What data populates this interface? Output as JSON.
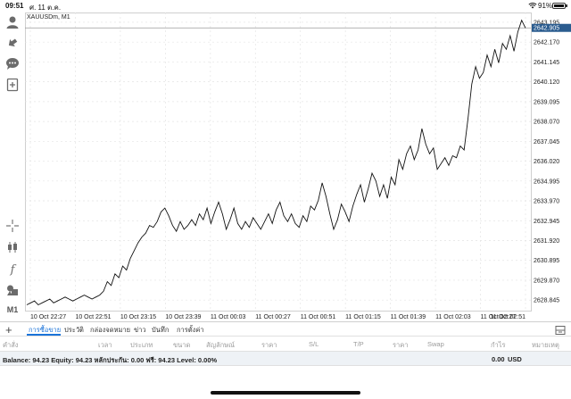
{
  "status_bar": {
    "time": "09:51",
    "date": "ศ. 11 ต.ค.",
    "battery": "91%"
  },
  "chart": {
    "symbol_label": "XAUUSDm, M1",
    "current_price": "2642.905",
    "price_axis_labels": [
      "2643.195",
      "2642.170",
      "2641.145",
      "2640.120",
      "2639.095",
      "2638.070",
      "2637.045",
      "2636.020",
      "2634.995",
      "2633.970",
      "2632.945",
      "2631.920",
      "2630.895",
      "2629.870",
      "2628.845"
    ],
    "time_axis_labels": [
      "10 Oct 22:27",
      "10 Oct 22:51",
      "10 Oct 23:15",
      "10 Oct 23:39",
      "11 Oct 00:03",
      "11 Oct 00:27",
      "11 Oct 00:51",
      "11 Oct 01:15",
      "11 Oct 01:39",
      "11 Oct 02:03",
      "11 Oct 02:27",
      "11 Oct 02:51"
    ]
  },
  "chart_data": {
    "type": "line",
    "series": [
      {
        "values": [
          2628.6,
          2628.7,
          2628.8,
          2628.6,
          2628.7,
          2628.8,
          2628.9,
          2628.7,
          2628.8,
          2628.9,
          2629.0,
          2628.9,
          2628.8,
          2628.9,
          2629.0,
          2629.1,
          2629.0,
          2628.9,
          2629.0,
          2629.1,
          2629.3,
          2629.8,
          2629.6,
          2630.2,
          2630.0,
          2630.6,
          2630.4,
          2631.0,
          2631.4,
          2631.8,
          2632.1,
          2632.3,
          2632.7,
          2632.6,
          2632.9,
          2633.4,
          2633.6,
          2633.2,
          2632.7,
          2632.4,
          2632.9,
          2632.5,
          2632.7,
          2633.0,
          2632.7,
          2633.3,
          2633.0,
          2633.6,
          2632.8,
          2633.4,
          2633.9,
          2633.3,
          2632.5,
          2633.0,
          2633.6,
          2632.8,
          2632.5,
          2632.9,
          2632.6,
          2633.1,
          2632.8,
          2632.5,
          2632.9,
          2633.3,
          2632.8,
          2633.5,
          2633.9,
          2633.2,
          2632.9,
          2633.3,
          2632.8,
          2632.6,
          2633.2,
          2632.9,
          2633.7,
          2633.5,
          2634.0,
          2634.9,
          2634.2,
          2633.3,
          2632.5,
          2633.0,
          2633.8,
          2633.4,
          2632.9,
          2633.7,
          2634.3,
          2634.8,
          2633.9,
          2634.6,
          2635.4,
          2635.0,
          2634.2,
          2634.8,
          2634.1,
          2635.2,
          2634.8,
          2636.1,
          2635.6,
          2636.4,
          2636.8,
          2636.1,
          2636.6,
          2637.7,
          2636.9,
          2636.4,
          2636.7,
          2635.6,
          2635.9,
          2636.2,
          2635.8,
          2636.3,
          2636.2,
          2636.8,
          2636.6,
          2638.2,
          2640.0,
          2640.9,
          2640.3,
          2640.6,
          2641.5,
          2640.9,
          2641.8,
          2641.1,
          2642.1,
          2641.8,
          2642.5,
          2641.7,
          2642.7,
          2643.3,
          2642.9
        ],
        "color": "#111111"
      }
    ],
    "xlabel": "",
    "ylabel": "",
    "ylim": [
      2628.3,
      2643.7
    ],
    "grid": true,
    "current_price_line": 2642.905
  },
  "tabs": [
    "การซื้อขาย",
    "ประวัติ",
    "กล่องจดหมาย",
    "ข่าว",
    "บันทึก",
    "การตั้งค่า"
  ],
  "table_headers": [
    "คำสั่ง",
    "เวลา",
    "ประเภท",
    "ขนาด",
    "สัญลักษณ์",
    "ราคา",
    "S/L",
    "T/P",
    "ราคา",
    "Swap",
    "กำไร",
    "หมายเหตุ"
  ],
  "balance": {
    "text": "Balance: 94.23 Equity: 94.23 หลักประกัน: 0.00 ฟรี: 94.23 Level: 0.00%",
    "profit": "0.00",
    "currency": "USD"
  },
  "colors": {
    "accent": "#1a73d9",
    "price_tag": "#2b5c8f",
    "line": "#111111",
    "grid": "#e4e4e4"
  },
  "toolbar_icons": [
    "account-icon",
    "trade-icon",
    "chat-icon",
    "add-chart-icon",
    "crosshair-icon",
    "chart-type-icon",
    "indicators-icon",
    "objects-icon",
    "timeframe-m1"
  ],
  "timeframe": "M1"
}
